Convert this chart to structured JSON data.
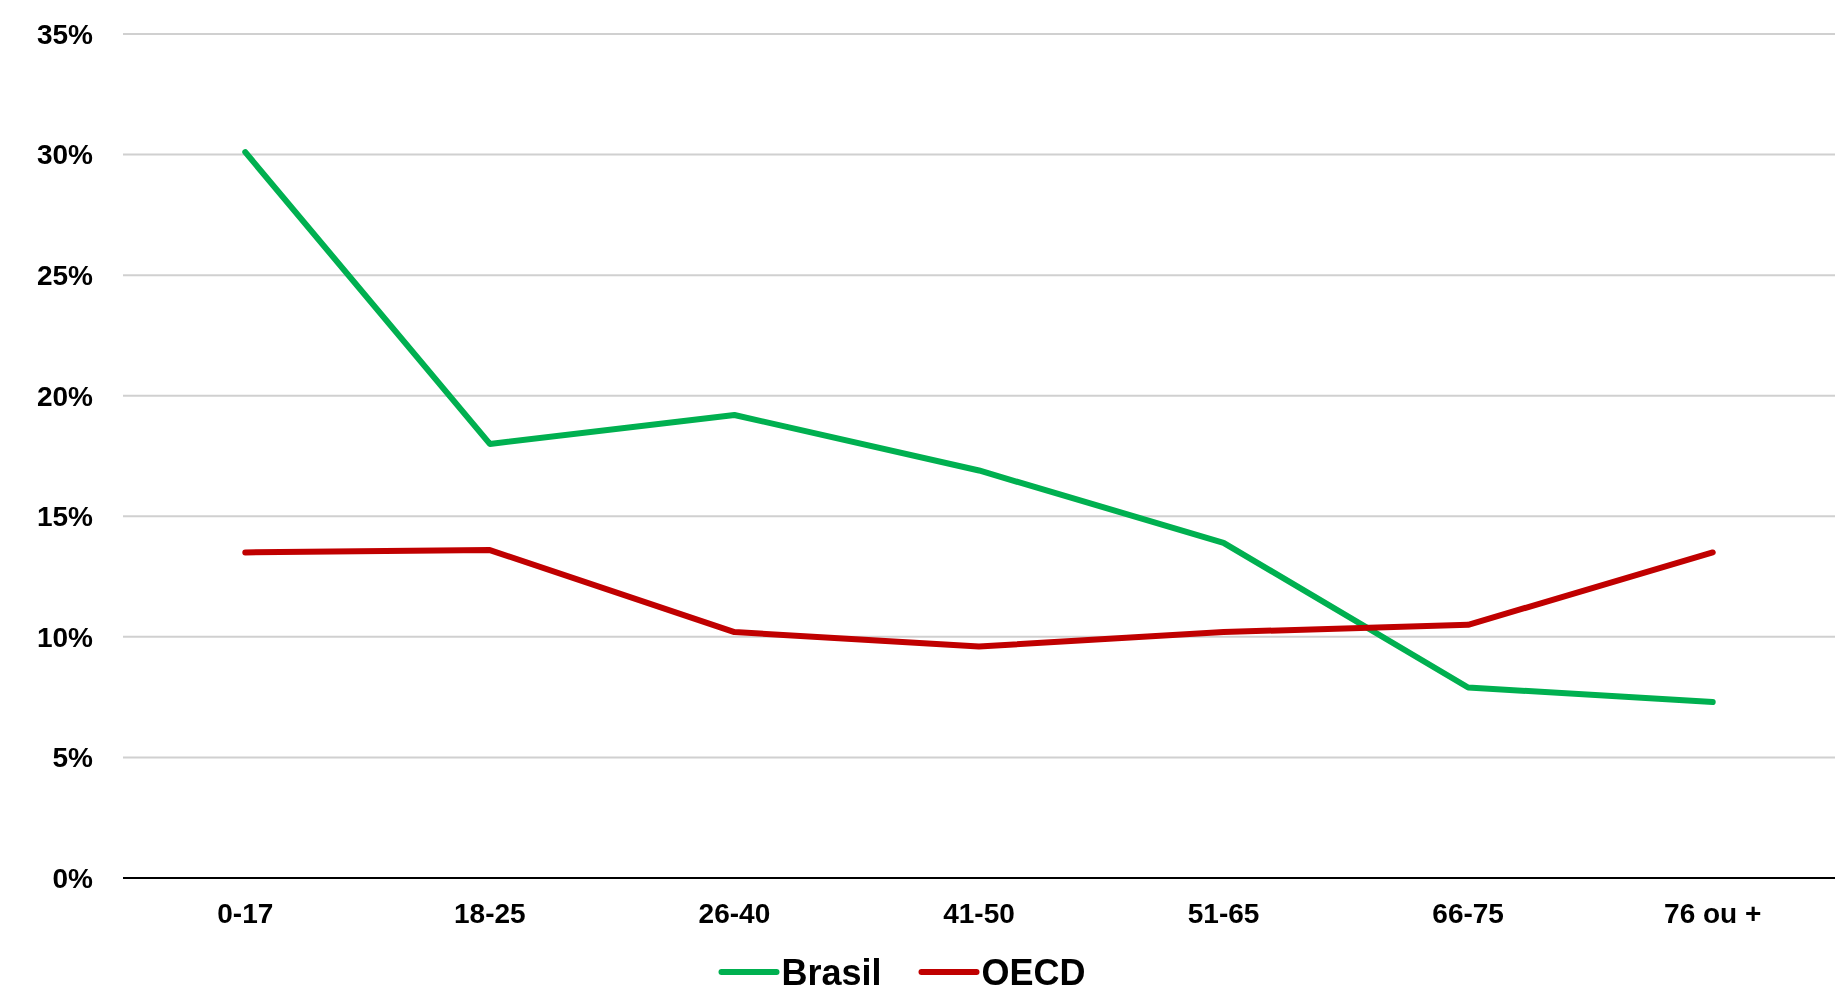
{
  "chart_data": {
    "type": "line",
    "categories": [
      "0-17",
      "18-25",
      "26-40",
      "41-50",
      "51-65",
      "66-75",
      "76 ou +"
    ],
    "series": [
      {
        "name": "Brasil",
        "color": "#00b050",
        "values": [
          30.1,
          18.0,
          19.2,
          16.9,
          13.9,
          7.9,
          7.3
        ]
      },
      {
        "name": "OECD",
        "color": "#c00000",
        "values": [
          13.5,
          13.6,
          10.2,
          9.6,
          10.2,
          10.5,
          13.5
        ]
      }
    ],
    "ylim": [
      0,
      35
    ],
    "yticks": [
      {
        "value": 0,
        "label": "0%"
      },
      {
        "value": 5,
        "label": "5%"
      },
      {
        "value": 10,
        "label": "10%"
      },
      {
        "value": 15,
        "label": "15%"
      },
      {
        "value": 20,
        "label": "20%"
      },
      {
        "value": 25,
        "label": "25%"
      },
      {
        "value": 30,
        "label": "30%"
      },
      {
        "value": 35,
        "label": "35%"
      }
    ],
    "grid": "y",
    "legend": "bottom",
    "marker": "none",
    "line_style": "solid"
  }
}
